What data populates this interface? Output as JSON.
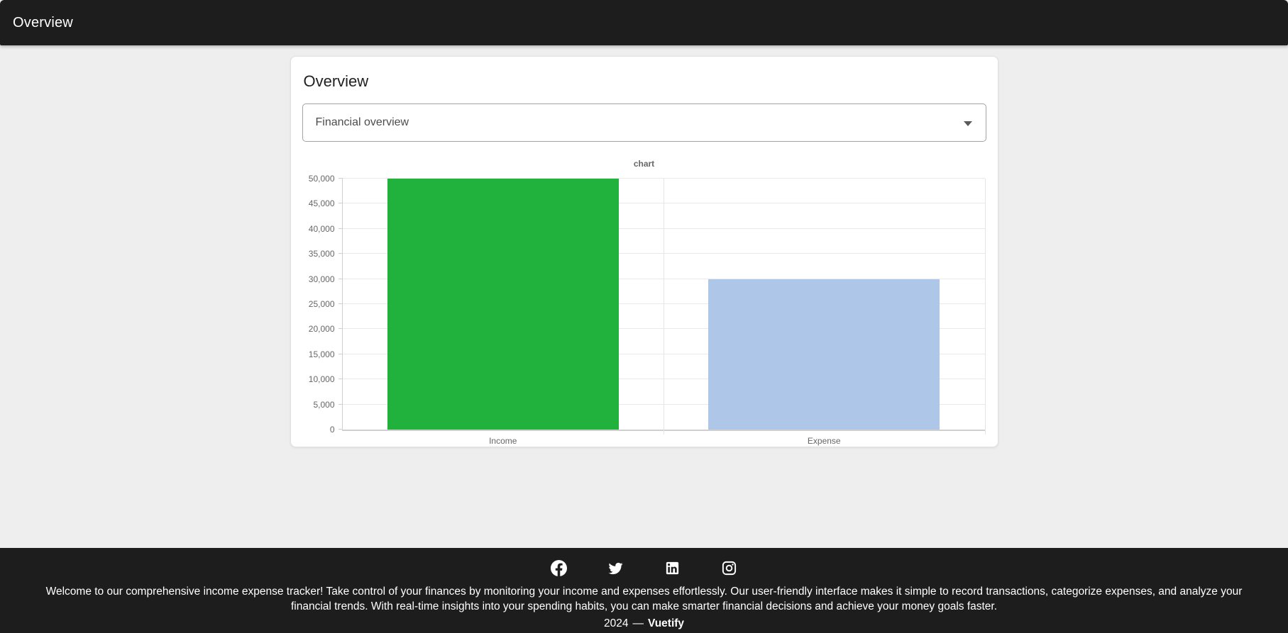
{
  "appbar": {
    "title": "Overview"
  },
  "card": {
    "title": "Overview",
    "select": {
      "value": "Financial overview"
    }
  },
  "chart_data": {
    "type": "bar",
    "title": "chart",
    "categories": [
      "Income",
      "Expense"
    ],
    "values": [
      50000,
      30000
    ],
    "bar_colors": [
      "#21b13d",
      "#aec6e8"
    ],
    "xlabel": "",
    "ylabel": "",
    "ylim": [
      0,
      50000
    ],
    "ytick_step": 5000,
    "ytick_labels": [
      "0",
      "5,000",
      "10,000",
      "15,000",
      "20,000",
      "25,000",
      "30,000",
      "35,000",
      "40,000",
      "45,000",
      "50,000"
    ],
    "grid": true,
    "legend": false
  },
  "footer": {
    "icons": [
      "facebook-icon",
      "twitter-icon",
      "linkedin-icon",
      "instagram-icon"
    ],
    "description": "Welcome to our comprehensive income expense tracker! Take control of your finances by monitoring your income and expenses effortlessly. Our user-friendly interface makes it simple to record transactions, categorize expenses, and analyze your financial trends. With real-time insights into your spending habits, you can make smarter financial decisions and achieve your money goals faster.",
    "year": "2024",
    "separator": "—",
    "brand": "Vuetify"
  },
  "colors": {
    "appbar_bg": "#1d1d1d",
    "footer_bg": "#1d1d1d",
    "page_bg": "#eeeeee",
    "income_bar": "#21b13d",
    "expense_bar": "#aec6e8",
    "tick_text": "#666666",
    "gridline": "#e9e9e9"
  }
}
